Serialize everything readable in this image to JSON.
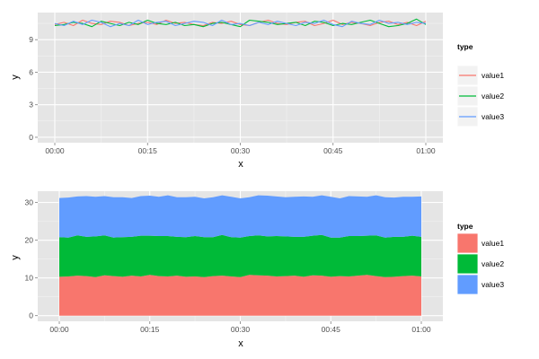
{
  "chart_data": [
    {
      "type": "line",
      "xlabel": "x",
      "ylabel": "y",
      "x_ticks": [
        "00:00",
        "00:15",
        "00:30",
        "00:45",
        "01:00"
      ],
      "x_tick_minutes": [
        0,
        15,
        30,
        45,
        60
      ],
      "xlim_minutes": [
        0,
        60
      ],
      "y_ticks": [
        0,
        3,
        6,
        9
      ],
      "ylim": [
        -0.5,
        11.5
      ],
      "grid": true,
      "legend": {
        "title": "type",
        "placement": "right",
        "entries": [
          "value1",
          "value2",
          "value3"
        ]
      },
      "x_minutes": [
        0,
        1.5,
        3,
        4.5,
        6,
        7.5,
        9,
        10.5,
        12,
        13.5,
        15,
        16.5,
        18,
        19.5,
        21,
        22.5,
        24,
        25.5,
        27,
        28.5,
        30,
        31.5,
        33,
        34.5,
        36,
        37.5,
        39,
        40.5,
        42,
        43.5,
        45,
        46.5,
        48,
        49.5,
        51,
        52.5,
        54,
        55.5,
        57,
        58.5,
        60
      ],
      "series": [
        {
          "name": "value1",
          "color": "#f8766d",
          "values": [
            10.4,
            10.6,
            10.3,
            10.8,
            10.5,
            10.4,
            10.7,
            10.6,
            10.3,
            10.5,
            10.6,
            10.4,
            10.8,
            10.5,
            10.6,
            10.4,
            10.3,
            10.6,
            10.5,
            10.7,
            10.4,
            10.3,
            10.6,
            10.8,
            10.5,
            10.4,
            10.6,
            10.7,
            10.3,
            10.5,
            10.8,
            10.4,
            10.6,
            10.5,
            10.3,
            10.6,
            10.7,
            10.4,
            10.6,
            10.3,
            10.7
          ]
        },
        {
          "name": "value2",
          "color": "#00ba38",
          "values": [
            10.3,
            10.4,
            10.6,
            10.5,
            10.2,
            10.7,
            10.5,
            10.3,
            10.6,
            10.4,
            10.8,
            10.5,
            10.4,
            10.6,
            10.3,
            10.4,
            10.2,
            10.5,
            10.6,
            10.4,
            10.2,
            10.8,
            10.7,
            10.6,
            10.4,
            10.5,
            10.6,
            10.3,
            10.7,
            10.6,
            10.3,
            10.5,
            10.4,
            10.6,
            10.8,
            10.5,
            10.2,
            10.3,
            10.5,
            10.9,
            10.4
          ]
        },
        {
          "name": "value3",
          "color": "#619cff",
          "values": [
            10.5,
            10.3,
            10.7,
            10.4,
            10.8,
            10.6,
            10.2,
            10.5,
            10.3,
            10.8,
            10.4,
            10.6,
            10.7,
            10.3,
            10.5,
            10.7,
            10.6,
            10.3,
            10.8,
            10.4,
            10.5,
            10.3,
            10.6,
            10.4,
            10.7,
            10.5,
            10.3,
            10.6,
            10.5,
            10.8,
            10.4,
            10.2,
            10.7,
            10.5,
            10.4,
            10.8,
            10.5,
            10.6,
            10.4,
            10.6,
            10.5
          ]
        }
      ]
    },
    {
      "type": "area",
      "stacked": true,
      "xlabel": "x",
      "ylabel": "y",
      "x_ticks": [
        "00:00",
        "00:15",
        "00:30",
        "00:45",
        "01:00"
      ],
      "x_tick_minutes": [
        0,
        15,
        30,
        45,
        60
      ],
      "xlim_minutes": [
        0,
        60
      ],
      "y_ticks": [
        0,
        10,
        20,
        30
      ],
      "ylim": [
        -1.5,
        33
      ],
      "grid": true,
      "legend": {
        "title": "type",
        "placement": "right",
        "entries": [
          "value1",
          "value2",
          "value3"
        ]
      },
      "x_minutes": [
        0,
        1.5,
        3,
        4.5,
        6,
        7.5,
        9,
        10.5,
        12,
        13.5,
        15,
        16.5,
        18,
        19.5,
        21,
        22.5,
        24,
        25.5,
        27,
        28.5,
        30,
        31.5,
        33,
        34.5,
        36,
        37.5,
        39,
        40.5,
        42,
        43.5,
        45,
        46.5,
        48,
        49.5,
        51,
        52.5,
        54,
        55.5,
        57,
        58.5,
        60
      ],
      "series": [
        {
          "name": "value1",
          "color": "#f8766d",
          "values": [
            10.3,
            10.4,
            10.6,
            10.5,
            10.2,
            10.7,
            10.5,
            10.3,
            10.6,
            10.4,
            10.8,
            10.5,
            10.4,
            10.6,
            10.3,
            10.4,
            10.2,
            10.5,
            10.6,
            10.4,
            10.2,
            10.8,
            10.7,
            10.6,
            10.4,
            10.5,
            10.6,
            10.3,
            10.7,
            10.6,
            10.3,
            10.5,
            10.4,
            10.6,
            10.8,
            10.5,
            10.2,
            10.3,
            10.5,
            10.6,
            10.4
          ]
        },
        {
          "name": "value2",
          "color": "#00ba38",
          "values": [
            10.5,
            10.3,
            10.7,
            10.4,
            10.8,
            10.6,
            10.2,
            10.5,
            10.3,
            10.8,
            10.4,
            10.6,
            10.7,
            10.3,
            10.5,
            10.7,
            10.6,
            10.3,
            10.8,
            10.4,
            10.5,
            10.3,
            10.6,
            10.4,
            10.7,
            10.5,
            10.3,
            10.6,
            10.5,
            10.8,
            10.4,
            10.2,
            10.7,
            10.5,
            10.4,
            10.8,
            10.5,
            10.6,
            10.4,
            10.6,
            10.5
          ]
        },
        {
          "name": "value3",
          "color": "#619cff",
          "values": [
            10.4,
            10.6,
            10.3,
            10.8,
            10.5,
            10.4,
            10.7,
            10.6,
            10.3,
            10.5,
            10.6,
            10.4,
            10.8,
            10.5,
            10.6,
            10.4,
            10.3,
            10.6,
            10.5,
            10.7,
            10.4,
            10.3,
            10.6,
            10.8,
            10.5,
            10.4,
            10.6,
            10.7,
            10.3,
            10.5,
            10.8,
            10.4,
            10.6,
            10.5,
            10.3,
            10.6,
            10.7,
            10.4,
            10.6,
            10.3,
            10.7
          ]
        }
      ]
    }
  ]
}
